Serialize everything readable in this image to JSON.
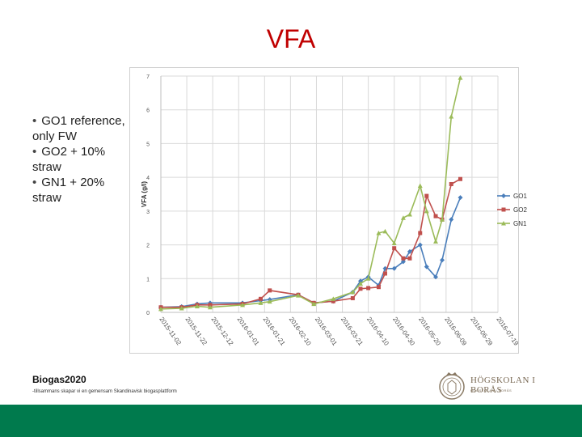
{
  "slide": {
    "title": "VFA",
    "bullets": [
      "GO1 reference, only FW",
      "GO2 + 10% straw",
      "GN1 + 20% straw"
    ]
  },
  "footer": {
    "logo_text": "Biogas2020",
    "tagline": "-tillsammans skapar vi en gemensam Skandinavisk biogasplattform",
    "university": "HÖGSKOLAN I BORÅS",
    "university_sub": "HÖGSKOLAN I BORÅS",
    "bar_color": "#007a4d"
  },
  "chart_data": {
    "type": "line",
    "title": "",
    "xlabel": "",
    "ylabel": "VFA (g/l)",
    "ylim": [
      0,
      7
    ],
    "yticks": [
      "0",
      "1",
      "2",
      "3",
      "4",
      "5",
      "6",
      "7"
    ],
    "grid": true,
    "legend_position": "right",
    "x_tick_labels": [
      "2015-11-02",
      "2015-11-22",
      "2015-12-12",
      "2016-01-01",
      "2016-01-21",
      "2016-02-10",
      "2016-03-01",
      "2016-03-21",
      "2016-04-10",
      "2016-04-30",
      "2016-05-20",
      "2016-06-09",
      "2016-06-29",
      "2016-07-19"
    ],
    "series": [
      {
        "name": "GO1",
        "color": "#4a7ebb",
        "marker": "diamond",
        "points": [
          [
            "2015-11-02",
            0.15
          ],
          [
            "2015-11-18",
            0.17
          ],
          [
            "2015-11-30",
            0.25
          ],
          [
            "2015-12-10",
            0.28
          ],
          [
            "2016-01-04",
            0.28
          ],
          [
            "2016-01-18",
            0.35
          ],
          [
            "2016-01-25",
            0.38
          ],
          [
            "2016-02-16",
            0.52
          ],
          [
            "2016-02-28",
            0.28
          ],
          [
            "2016-03-14",
            0.33
          ],
          [
            "2016-03-29",
            0.6
          ],
          [
            "2016-04-04",
            0.93
          ],
          [
            "2016-04-10",
            1.05
          ],
          [
            "2016-04-18",
            0.8
          ],
          [
            "2016-04-23",
            1.3
          ],
          [
            "2016-04-30",
            1.3
          ],
          [
            "2016-05-07",
            1.5
          ],
          [
            "2016-05-12",
            1.8
          ],
          [
            "2016-05-20",
            2.0
          ],
          [
            "2016-05-25",
            1.35
          ],
          [
            "2016-06-01",
            1.05
          ],
          [
            "2016-06-06",
            1.55
          ],
          [
            "2016-06-13",
            2.75
          ],
          [
            "2016-06-20",
            3.4
          ]
        ]
      },
      {
        "name": "GO2",
        "color": "#c0504d",
        "marker": "square",
        "points": [
          [
            "2015-11-02",
            0.15
          ],
          [
            "2015-11-18",
            0.15
          ],
          [
            "2015-11-30",
            0.22
          ],
          [
            "2015-12-10",
            0.22
          ],
          [
            "2016-01-04",
            0.25
          ],
          [
            "2016-01-18",
            0.4
          ],
          [
            "2016-01-25",
            0.65
          ],
          [
            "2016-02-16",
            0.52
          ],
          [
            "2016-02-28",
            0.28
          ],
          [
            "2016-03-14",
            0.33
          ],
          [
            "2016-03-29",
            0.42
          ],
          [
            "2016-04-04",
            0.7
          ],
          [
            "2016-04-10",
            0.72
          ],
          [
            "2016-04-18",
            0.75
          ],
          [
            "2016-04-23",
            1.15
          ],
          [
            "2016-04-30",
            1.9
          ],
          [
            "2016-05-07",
            1.6
          ],
          [
            "2016-05-12",
            1.6
          ],
          [
            "2016-05-20",
            2.35
          ],
          [
            "2016-05-25",
            3.45
          ],
          [
            "2016-06-01",
            2.85
          ],
          [
            "2016-06-06",
            2.75
          ],
          [
            "2016-06-13",
            3.8
          ],
          [
            "2016-06-20",
            3.95
          ]
        ]
      },
      {
        "name": "GN1",
        "color": "#9bbb59",
        "marker": "triangle",
        "points": [
          [
            "2015-11-02",
            0.1
          ],
          [
            "2015-11-18",
            0.12
          ],
          [
            "2015-11-30",
            0.18
          ],
          [
            "2015-12-10",
            0.15
          ],
          [
            "2016-01-04",
            0.22
          ],
          [
            "2016-01-18",
            0.28
          ],
          [
            "2016-01-25",
            0.32
          ],
          [
            "2016-02-16",
            0.5
          ],
          [
            "2016-02-28",
            0.25
          ],
          [
            "2016-03-14",
            0.4
          ],
          [
            "2016-03-29",
            0.6
          ],
          [
            "2016-04-04",
            0.85
          ],
          [
            "2016-04-10",
            1.0
          ],
          [
            "2016-04-18",
            2.35
          ],
          [
            "2016-04-23",
            2.4
          ],
          [
            "2016-04-30",
            2.05
          ],
          [
            "2016-05-07",
            2.8
          ],
          [
            "2016-05-12",
            2.9
          ],
          [
            "2016-05-20",
            3.75
          ],
          [
            "2016-05-25",
            3.0
          ],
          [
            "2016-06-01",
            2.1
          ],
          [
            "2016-06-06",
            2.75
          ],
          [
            "2016-06-13",
            5.8
          ],
          [
            "2016-06-20",
            6.95
          ]
        ]
      }
    ]
  }
}
